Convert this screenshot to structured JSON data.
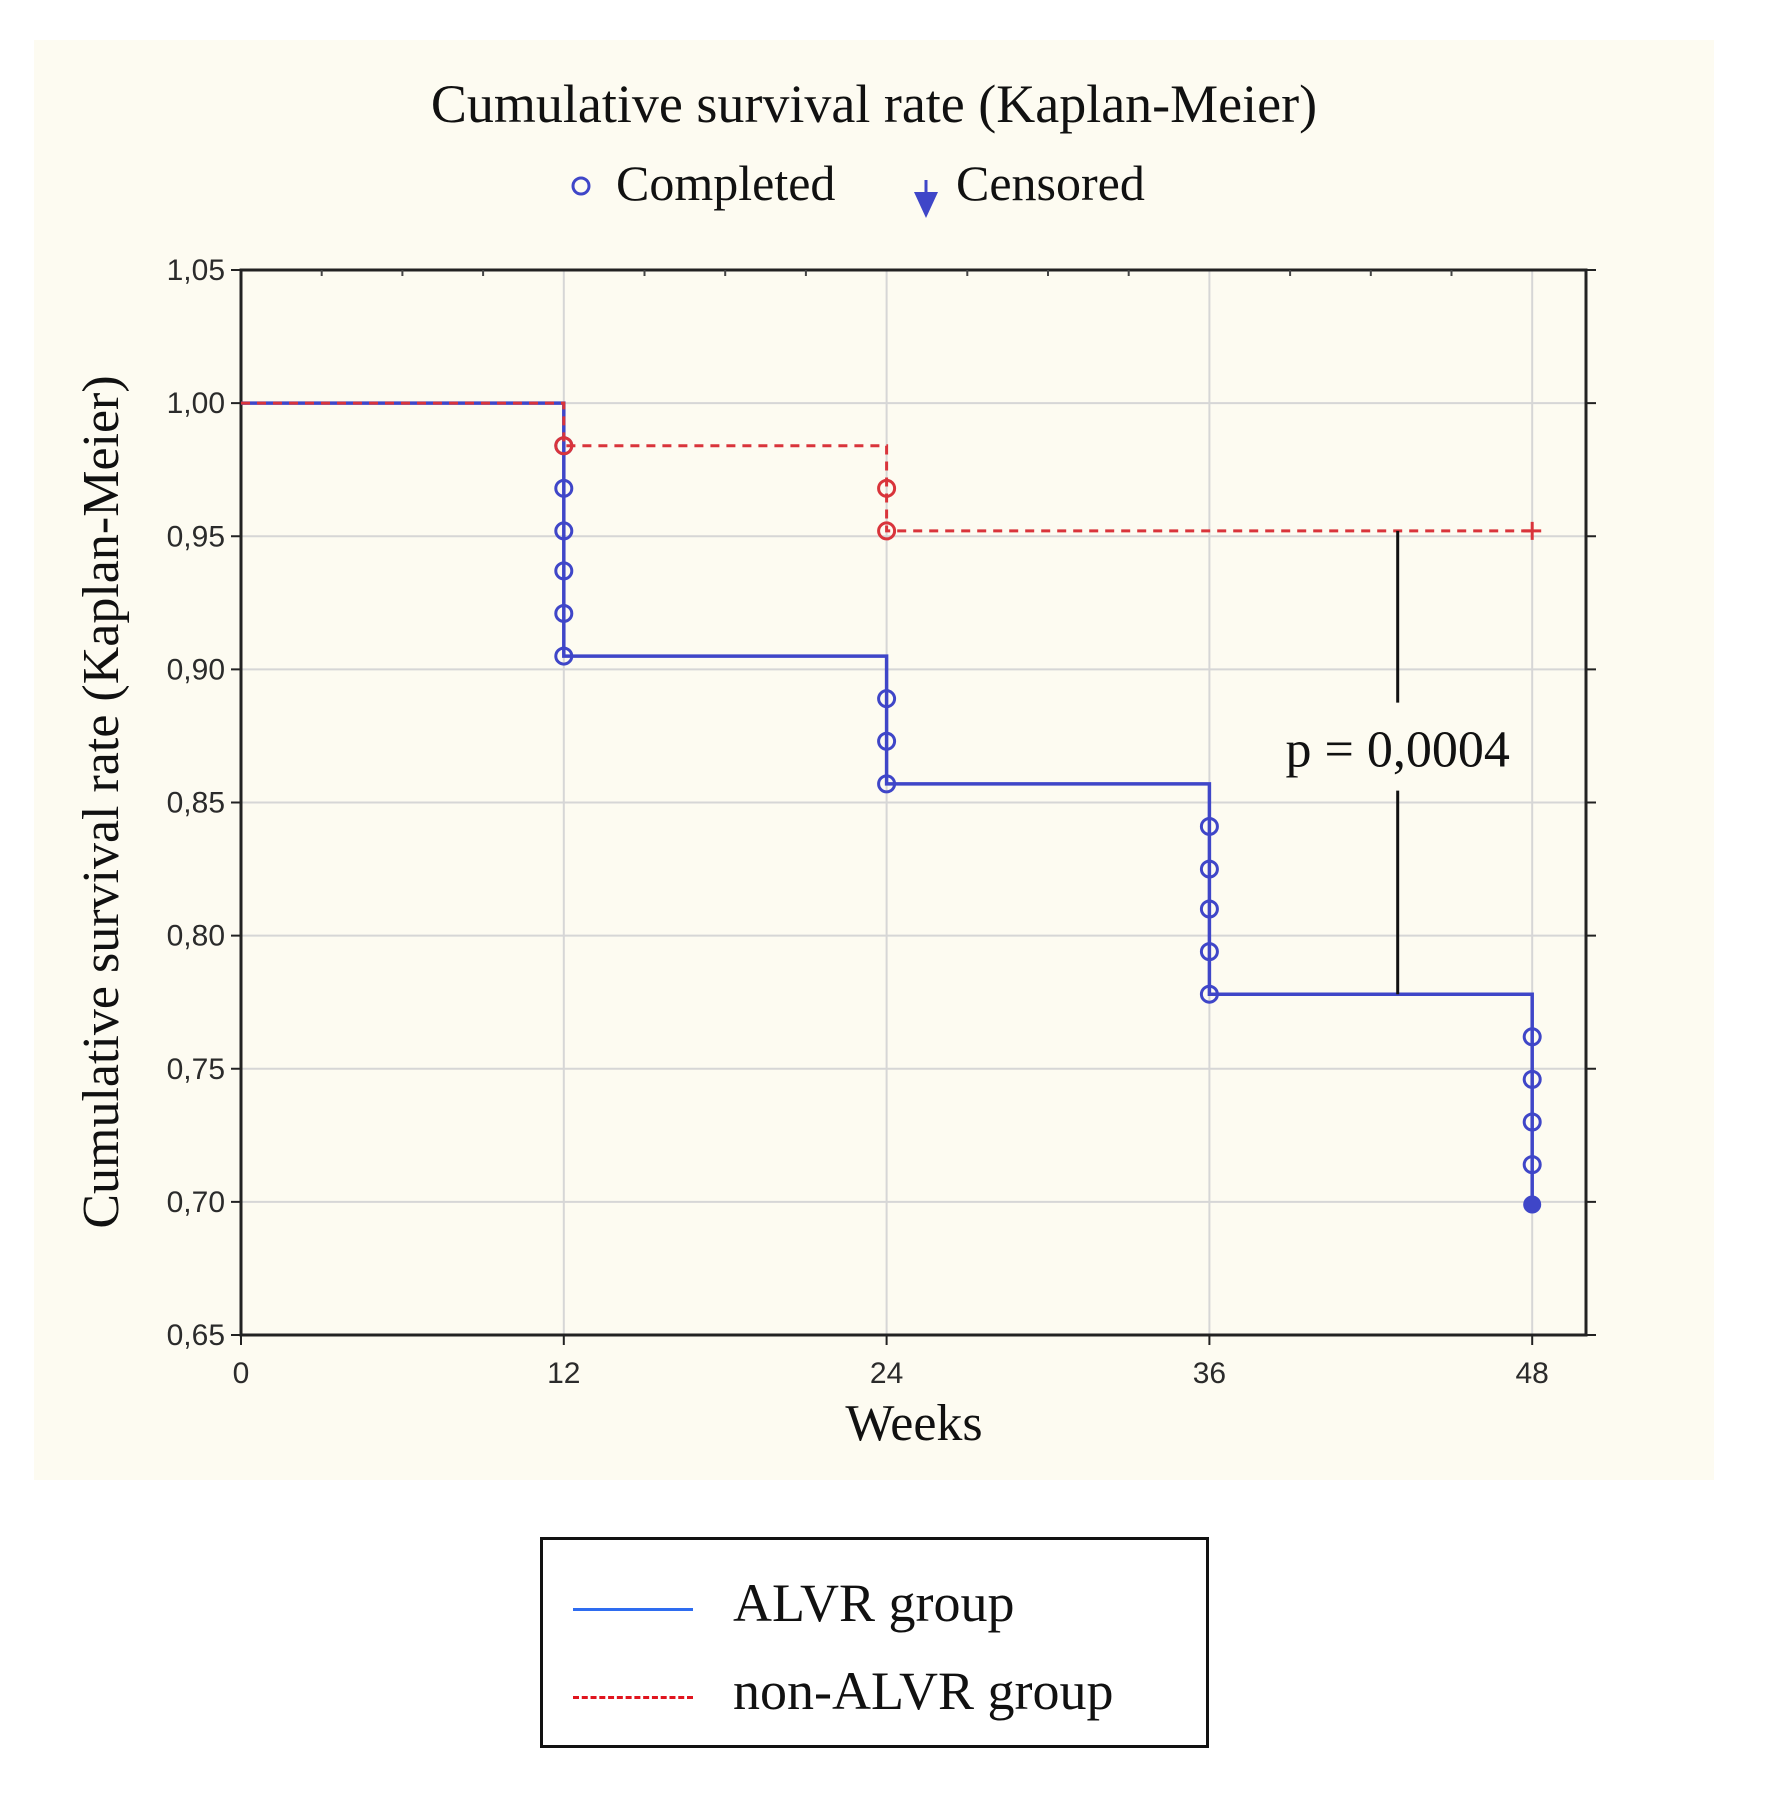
{
  "chart_data": {
    "type": "line",
    "subtype": "kaplan-meier step",
    "title": "Cumulative survival rate (Kaplan-Meier)",
    "marker_legend": {
      "completed": "Completed",
      "censored": "Censored"
    },
    "xlabel": "Weeks",
    "ylabel": "Cumulative survival rate (Kaplan-Meier)",
    "xlim": [
      0,
      50
    ],
    "ylim": [
      0.65,
      1.05
    ],
    "xticks": [
      {
        "value": 0,
        "label": "0"
      },
      {
        "value": 12,
        "label": "12"
      },
      {
        "value": 24,
        "label": "24"
      },
      {
        "value": 36,
        "label": "36"
      },
      {
        "value": 48,
        "label": "48"
      }
    ],
    "yticks": [
      {
        "value": 0.65,
        "label": "0,65"
      },
      {
        "value": 0.7,
        "label": "0,70"
      },
      {
        "value": 0.75,
        "label": "0,75"
      },
      {
        "value": 0.8,
        "label": "0,80"
      },
      {
        "value": 0.85,
        "label": "0,85"
      },
      {
        "value": 0.9,
        "label": "0,90"
      },
      {
        "value": 0.95,
        "label": "0,95"
      },
      {
        "value": 1.0,
        "label": "1,00"
      },
      {
        "value": 1.05,
        "label": "1,05"
      }
    ],
    "grid": true,
    "series": [
      {
        "name": "ALVR group",
        "color": "#3f46c8",
        "legend_color": "#2e6cf0",
        "dash": "solid",
        "steps": [
          {
            "x": 0,
            "y": 1.0
          },
          {
            "x": 12,
            "y": 0.905
          },
          {
            "x": 24,
            "y": 0.857
          },
          {
            "x": 36,
            "y": 0.778
          },
          {
            "x": 48,
            "y": 0.699
          }
        ],
        "completed": [
          {
            "x": 12,
            "y": 0.984
          },
          {
            "x": 12,
            "y": 0.968
          },
          {
            "x": 12,
            "y": 0.952
          },
          {
            "x": 12,
            "y": 0.937
          },
          {
            "x": 12,
            "y": 0.921
          },
          {
            "x": 12,
            "y": 0.905
          },
          {
            "x": 24,
            "y": 0.889
          },
          {
            "x": 24,
            "y": 0.873
          },
          {
            "x": 24,
            "y": 0.857
          },
          {
            "x": 36,
            "y": 0.841
          },
          {
            "x": 36,
            "y": 0.825
          },
          {
            "x": 36,
            "y": 0.81
          },
          {
            "x": 36,
            "y": 0.794
          },
          {
            "x": 36,
            "y": 0.778
          },
          {
            "x": 48,
            "y": 0.762
          },
          {
            "x": 48,
            "y": 0.746
          },
          {
            "x": 48,
            "y": 0.73
          },
          {
            "x": 48,
            "y": 0.714
          }
        ],
        "censored": [
          {
            "x": 48,
            "y": 0.699
          }
        ]
      },
      {
        "name": "non-ALVR group",
        "color": "#d9343b",
        "legend_color": "#e0141e",
        "dash": "dashed",
        "steps": [
          {
            "x": 0,
            "y": 1.0
          },
          {
            "x": 12,
            "y": 0.984
          },
          {
            "x": 24,
            "y": 0.952
          },
          {
            "x": 48,
            "y": 0.952
          }
        ],
        "completed": [
          {
            "x": 12,
            "y": 0.984
          },
          {
            "x": 24,
            "y": 0.968
          },
          {
            "x": 24,
            "y": 0.952
          }
        ],
        "censored": [
          {
            "x": 48,
            "y": 0.952
          }
        ]
      }
    ],
    "annotation": {
      "text": "p = 0,0004",
      "x": 43,
      "y_top": 0.952,
      "y_bottom": 0.778
    }
  }
}
